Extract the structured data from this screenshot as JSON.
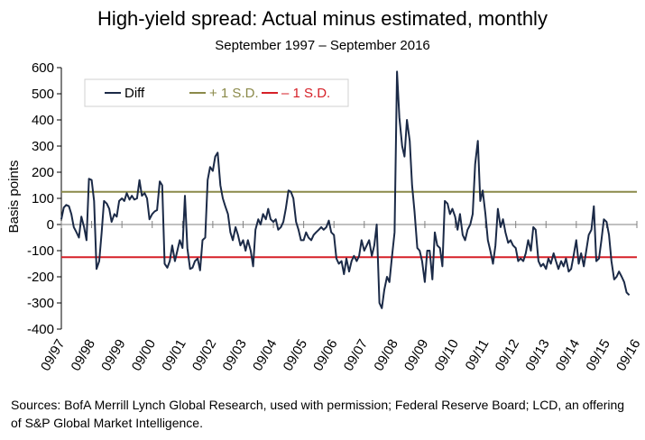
{
  "chart_data": {
    "type": "line",
    "title": "High-yield spread: Actual minus estimated, monthly",
    "subtitle": "September 1997 – September 2016",
    "ylabel": "Basis points",
    "xlabel": "",
    "ylim": [
      -400,
      600
    ],
    "yticks": [
      600,
      500,
      400,
      300,
      200,
      100,
      0,
      -100,
      -200,
      -300,
      -400
    ],
    "xlim": [
      1997.67,
      2016.67
    ],
    "xticks": [
      {
        "x": 1997.67,
        "label": "09/97"
      },
      {
        "x": 1998.67,
        "label": "09/98"
      },
      {
        "x": 1999.67,
        "label": "09/99"
      },
      {
        "x": 2000.67,
        "label": "09/00"
      },
      {
        "x": 2001.67,
        "label": "09/01"
      },
      {
        "x": 2002.67,
        "label": "09/02"
      },
      {
        "x": 2003.67,
        "label": "09/03"
      },
      {
        "x": 2004.67,
        "label": "09/04"
      },
      {
        "x": 2005.67,
        "label": "09/05"
      },
      {
        "x": 2006.67,
        "label": "09/06"
      },
      {
        "x": 2007.67,
        "label": "09/07"
      },
      {
        "x": 2008.67,
        "label": "09/08"
      },
      {
        "x": 2009.67,
        "label": "09/09"
      },
      {
        "x": 2010.67,
        "label": "09/10"
      },
      {
        "x": 2011.67,
        "label": "09/11"
      },
      {
        "x": 2012.67,
        "label": "09/12"
      },
      {
        "x": 2013.67,
        "label": "09/13"
      },
      {
        "x": 2014.67,
        "label": "09/14"
      },
      {
        "x": 2015.67,
        "label": "09/15"
      },
      {
        "x": 2016.67,
        "label": "09/16"
      }
    ],
    "legend_position": "top-left",
    "grid": false,
    "series": [
      {
        "name": "Diff",
        "color": "#1b2a47",
        "points": [
          [
            1997.67,
            20
          ],
          [
            1997.75,
            65
          ],
          [
            1997.83,
            75
          ],
          [
            1997.92,
            70
          ],
          [
            1998.0,
            40
          ],
          [
            1998.08,
            -10
          ],
          [
            1998.17,
            -30
          ],
          [
            1998.25,
            -50
          ],
          [
            1998.33,
            30
          ],
          [
            1998.42,
            -10
          ],
          [
            1998.5,
            -60
          ],
          [
            1998.58,
            175
          ],
          [
            1998.67,
            170
          ],
          [
            1998.75,
            90
          ],
          [
            1998.83,
            -170
          ],
          [
            1998.92,
            -140
          ],
          [
            1999.0,
            -30
          ],
          [
            1999.08,
            90
          ],
          [
            1999.17,
            80
          ],
          [
            1999.25,
            60
          ],
          [
            1999.33,
            10
          ],
          [
            1999.42,
            40
          ],
          [
            1999.5,
            30
          ],
          [
            1999.58,
            90
          ],
          [
            1999.67,
            100
          ],
          [
            1999.75,
            90
          ],
          [
            1999.83,
            120
          ],
          [
            1999.92,
            95
          ],
          [
            2000.0,
            110
          ],
          [
            2000.08,
            95
          ],
          [
            2000.17,
            100
          ],
          [
            2000.25,
            170
          ],
          [
            2000.33,
            110
          ],
          [
            2000.42,
            120
          ],
          [
            2000.5,
            100
          ],
          [
            2000.58,
            20
          ],
          [
            2000.67,
            40
          ],
          [
            2000.75,
            50
          ],
          [
            2000.83,
            55
          ],
          [
            2000.92,
            165
          ],
          [
            2001.0,
            150
          ],
          [
            2001.08,
            -150
          ],
          [
            2001.17,
            -165
          ],
          [
            2001.25,
            -140
          ],
          [
            2001.33,
            -80
          ],
          [
            2001.42,
            -140
          ],
          [
            2001.5,
            -100
          ],
          [
            2001.58,
            -60
          ],
          [
            2001.67,
            -90
          ],
          [
            2001.75,
            110
          ],
          [
            2001.83,
            -90
          ],
          [
            2001.92,
            -170
          ],
          [
            2002.0,
            -165
          ],
          [
            2002.08,
            -140
          ],
          [
            2002.17,
            -130
          ],
          [
            2002.25,
            -175
          ],
          [
            2002.33,
            -60
          ],
          [
            2002.42,
            -50
          ],
          [
            2002.5,
            170
          ],
          [
            2002.58,
            220
          ],
          [
            2002.67,
            205
          ],
          [
            2002.75,
            260
          ],
          [
            2002.83,
            275
          ],
          [
            2002.92,
            150
          ],
          [
            2003.0,
            100
          ],
          [
            2003.08,
            70
          ],
          [
            2003.17,
            40
          ],
          [
            2003.25,
            -30
          ],
          [
            2003.33,
            -60
          ],
          [
            2003.42,
            -10
          ],
          [
            2003.5,
            -40
          ],
          [
            2003.58,
            -80
          ],
          [
            2003.67,
            -60
          ],
          [
            2003.75,
            -100
          ],
          [
            2003.83,
            -60
          ],
          [
            2003.92,
            -100
          ],
          [
            2004.0,
            -160
          ],
          [
            2004.08,
            -20
          ],
          [
            2004.17,
            20
          ],
          [
            2004.25,
            0
          ],
          [
            2004.33,
            40
          ],
          [
            2004.42,
            20
          ],
          [
            2004.5,
            60
          ],
          [
            2004.58,
            20
          ],
          [
            2004.67,
            10
          ],
          [
            2004.75,
            20
          ],
          [
            2004.83,
            -20
          ],
          [
            2004.92,
            -10
          ],
          [
            2005.0,
            10
          ],
          [
            2005.08,
            60
          ],
          [
            2005.17,
            130
          ],
          [
            2005.25,
            125
          ],
          [
            2005.33,
            100
          ],
          [
            2005.42,
            10
          ],
          [
            2005.5,
            -20
          ],
          [
            2005.58,
            -60
          ],
          [
            2005.67,
            -60
          ],
          [
            2005.75,
            -30
          ],
          [
            2005.83,
            -50
          ],
          [
            2005.92,
            -60
          ],
          [
            2006.0,
            -40
          ],
          [
            2006.08,
            -30
          ],
          [
            2006.17,
            -20
          ],
          [
            2006.25,
            -10
          ],
          [
            2006.33,
            -20
          ],
          [
            2006.42,
            -10
          ],
          [
            2006.5,
            15
          ],
          [
            2006.58,
            -30
          ],
          [
            2006.67,
            -40
          ],
          [
            2006.75,
            -130
          ],
          [
            2006.83,
            -150
          ],
          [
            2006.92,
            -140
          ],
          [
            2007.0,
            -190
          ],
          [
            2007.08,
            -130
          ],
          [
            2007.17,
            -180
          ],
          [
            2007.25,
            -140
          ],
          [
            2007.33,
            -120
          ],
          [
            2007.42,
            -140
          ],
          [
            2007.5,
            -120
          ],
          [
            2007.58,
            -60
          ],
          [
            2007.67,
            -100
          ],
          [
            2007.75,
            -80
          ],
          [
            2007.83,
            -60
          ],
          [
            2007.92,
            -120
          ],
          [
            2008.0,
            -80
          ],
          [
            2008.08,
            0
          ],
          [
            2008.17,
            -300
          ],
          [
            2008.25,
            -320
          ],
          [
            2008.33,
            -250
          ],
          [
            2008.42,
            -200
          ],
          [
            2008.5,
            -220
          ],
          [
            2008.58,
            -130
          ],
          [
            2008.67,
            -30
          ],
          [
            2008.75,
            585
          ],
          [
            2008.83,
            410
          ],
          [
            2008.92,
            300
          ],
          [
            2009.0,
            260
          ],
          [
            2009.08,
            400
          ],
          [
            2009.17,
            320
          ],
          [
            2009.25,
            150
          ],
          [
            2009.33,
            50
          ],
          [
            2009.42,
            -90
          ],
          [
            2009.5,
            -100
          ],
          [
            2009.58,
            -140
          ],
          [
            2009.67,
            -220
          ],
          [
            2009.75,
            -100
          ],
          [
            2009.83,
            -100
          ],
          [
            2009.92,
            -210
          ],
          [
            2010.0,
            -30
          ],
          [
            2010.08,
            -80
          ],
          [
            2010.17,
            -90
          ],
          [
            2010.25,
            -160
          ],
          [
            2010.33,
            90
          ],
          [
            2010.42,
            80
          ],
          [
            2010.5,
            40
          ],
          [
            2010.58,
            60
          ],
          [
            2010.67,
            30
          ],
          [
            2010.75,
            -20
          ],
          [
            2010.83,
            40
          ],
          [
            2010.92,
            -40
          ],
          [
            2011.0,
            -60
          ],
          [
            2011.08,
            -20
          ],
          [
            2011.17,
            0
          ],
          [
            2011.25,
            40
          ],
          [
            2011.33,
            230
          ],
          [
            2011.42,
            320
          ],
          [
            2011.5,
            90
          ],
          [
            2011.58,
            130
          ],
          [
            2011.67,
            40
          ],
          [
            2011.75,
            -60
          ],
          [
            2011.83,
            -100
          ],
          [
            2011.92,
            -150
          ],
          [
            2012.0,
            -80
          ],
          [
            2012.08,
            60
          ],
          [
            2012.17,
            -10
          ],
          [
            2012.25,
            20
          ],
          [
            2012.33,
            -30
          ],
          [
            2012.42,
            -70
          ],
          [
            2012.5,
            -60
          ],
          [
            2012.58,
            -80
          ],
          [
            2012.67,
            -90
          ],
          [
            2012.75,
            -140
          ],
          [
            2012.83,
            -130
          ],
          [
            2012.92,
            -140
          ],
          [
            2013.0,
            -110
          ],
          [
            2013.08,
            -60
          ],
          [
            2013.17,
            -100
          ],
          [
            2013.25,
            -10
          ],
          [
            2013.33,
            -20
          ],
          [
            2013.42,
            -140
          ],
          [
            2013.5,
            -160
          ],
          [
            2013.58,
            -150
          ],
          [
            2013.67,
            -170
          ],
          [
            2013.75,
            -130
          ],
          [
            2013.83,
            -150
          ],
          [
            2013.92,
            -110
          ],
          [
            2014.0,
            -140
          ],
          [
            2014.08,
            -170
          ],
          [
            2014.17,
            -140
          ],
          [
            2014.25,
            -160
          ],
          [
            2014.33,
            -130
          ],
          [
            2014.42,
            -180
          ],
          [
            2014.5,
            -170
          ],
          [
            2014.58,
            -120
          ],
          [
            2014.67,
            -60
          ],
          [
            2014.75,
            -150
          ],
          [
            2014.83,
            -110
          ],
          [
            2014.92,
            -160
          ],
          [
            2015.0,
            -100
          ],
          [
            2015.08,
            -40
          ],
          [
            2015.17,
            -20
          ],
          [
            2015.25,
            70
          ],
          [
            2015.33,
            -140
          ],
          [
            2015.42,
            -130
          ],
          [
            2015.5,
            -60
          ],
          [
            2015.58,
            20
          ],
          [
            2015.67,
            10
          ],
          [
            2015.75,
            -40
          ],
          [
            2015.83,
            -140
          ],
          [
            2015.92,
            -210
          ],
          [
            2016.0,
            -200
          ],
          [
            2016.08,
            -180
          ],
          [
            2016.17,
            -200
          ],
          [
            2016.25,
            -220
          ],
          [
            2016.33,
            -260
          ],
          [
            2016.42,
            -270
          ]
        ]
      },
      {
        "name": "+ 1 S.D.",
        "color": "#8b8a4a",
        "value": 125
      },
      {
        "name": "– 1 S.D.",
        "color": "#d62028",
        "value": -125
      }
    ]
  },
  "source_text": "Sources: BofA Merrill Lynch Global Research, used with permission; Federal Reserve Board; LCD, an offering of S&P Global Market Intelligence."
}
